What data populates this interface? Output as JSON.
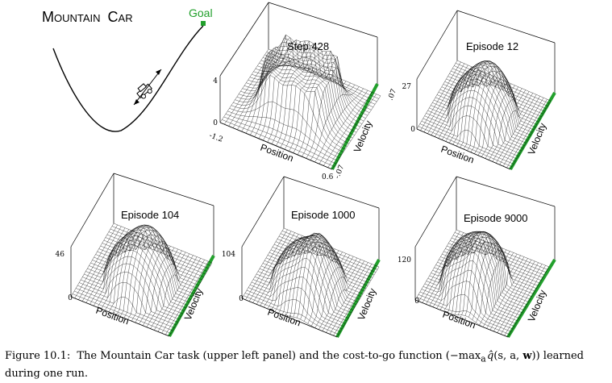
{
  "mountain_car": {
    "title_big_1": "M",
    "title_small_1": "OUNTAIN",
    "title_big_2": "C",
    "title_small_2": "AR",
    "goal_label": "Goal"
  },
  "panels": [
    {
      "title": "Step 428",
      "z_max": "4",
      "z_min": "0",
      "pos_min": "-1.2",
      "pos_max": "0.6",
      "vel_min": "-.07",
      "vel_max": ".07",
      "x_label": "Position",
      "y_label": "Velocity",
      "shape": "plateau"
    },
    {
      "title": "Episode 12",
      "z_max": "27",
      "z_min": "0",
      "x_label": "Position",
      "y_label": "Velocity",
      "shape": "dome"
    },
    {
      "title": "Episode 104",
      "z_max": "46",
      "z_min": "0",
      "x_label": "Position",
      "y_label": "Velocity",
      "shape": "dome"
    },
    {
      "title": "Episode 1000",
      "z_max": "104",
      "z_min": "0",
      "x_label": "Position",
      "y_label": "Velocity",
      "shape": "spiral"
    },
    {
      "title": "Episode 9000",
      "z_max": "120",
      "z_min": "0",
      "x_label": "Position",
      "y_label": "Velocity",
      "shape": "spiral_sharp"
    }
  ],
  "caption": {
    "label": "Figure 10.1:",
    "text_before": "The Mountain Car task (upper left panel) and the cost-to-go function (−",
    "max_word": "max",
    "max_sub": "a",
    "q_hat": "q̂",
    "args": "(s, a, ",
    "w_bold": "w",
    "text_after": ")) learned during one run."
  },
  "colors": {
    "velocity_axis": "#22a02c",
    "goal": "#22a02c",
    "wire": "#000000"
  }
}
